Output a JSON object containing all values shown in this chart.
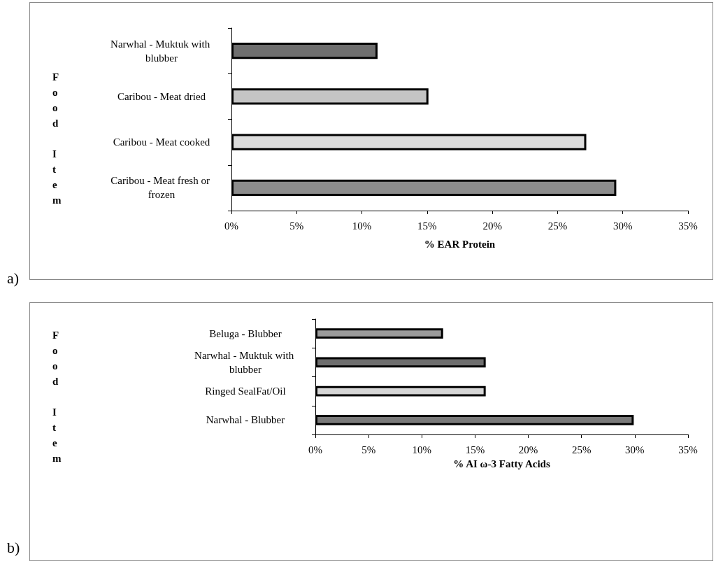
{
  "chart_data": [
    {
      "type": "bar",
      "orientation": "horizontal",
      "xlabel": "% EAR Protein",
      "ylabel": "Food Item",
      "categories": [
        "Narwhal - Muktuk with blubber",
        "Caribou - Meat dried",
        "Caribou - Meat cooked",
        "Caribou - Meat fresh or frozen"
      ],
      "values": [
        11.2,
        15.1,
        27.2,
        29.5
      ],
      "colors": [
        "#6e6e6e",
        "#c4c4c4",
        "#dcdcdc",
        "#8c8c8c"
      ],
      "xlim": [
        0,
        35
      ],
      "xticks": [
        {
          "value": 0,
          "label": "0%"
        },
        {
          "value": 5,
          "label": "5%"
        },
        {
          "value": 10,
          "label": "10%"
        },
        {
          "value": 15,
          "label": "15%"
        },
        {
          "value": 20,
          "label": "20%"
        },
        {
          "value": 25,
          "label": "25%"
        },
        {
          "value": 30,
          "label": "30%"
        },
        {
          "value": 35,
          "label": "35%"
        }
      ],
      "grid": false,
      "annotations": [
        "a)"
      ]
    },
    {
      "type": "bar",
      "orientation": "horizontal",
      "xlabel": "% AI ω-3 Fatty Acids",
      "ylabel": "Food Item",
      "categories": [
        "Beluga - Blubber",
        "Narwhal - Muktuk with blubber",
        "Ringed SealFat/Oil",
        "Narwhal - Blubber"
      ],
      "values": [
        12.0,
        16.0,
        16.0,
        29.9
      ],
      "colors": [
        "#9a9a9a",
        "#6e6e6e",
        "#d6d6d6",
        "#7a7a7a"
      ],
      "xlim": [
        0,
        35
      ],
      "xticks": [
        {
          "value": 0,
          "label": "0%"
        },
        {
          "value": 5,
          "label": "5%"
        },
        {
          "value": 10,
          "label": "10%"
        },
        {
          "value": 15,
          "label": "15%"
        },
        {
          "value": 20,
          "label": "20%"
        },
        {
          "value": 25,
          "label": "25%"
        },
        {
          "value": 30,
          "label": "30%"
        },
        {
          "value": 35,
          "label": "35%"
        }
      ],
      "grid": false,
      "annotations": [
        "b)"
      ]
    }
  ]
}
